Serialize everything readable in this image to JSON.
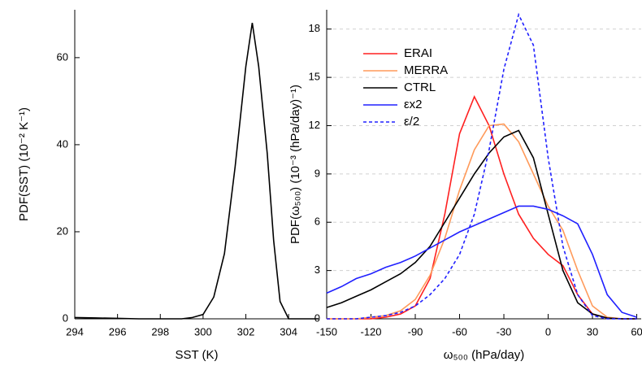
{
  "chart_data": [
    {
      "type": "line",
      "x_label": "SST (K)",
      "y_label": "PDF(SST) (10⁻² K⁻¹)",
      "x": [
        294,
        295,
        296,
        297,
        298,
        299,
        299.5,
        300,
        300.5,
        301,
        301.5,
        302,
        302.3,
        302.6,
        303,
        303.3,
        303.6,
        304,
        305,
        305.4
      ],
      "series": [
        {
          "name": null,
          "color": "#000000",
          "values": [
            0.3,
            0.2,
            0.1,
            0,
            0,
            0,
            0.3,
            1,
            5,
            15,
            35,
            58,
            68,
            58,
            38,
            18,
            4,
            0,
            0,
            0
          ]
        }
      ],
      "xlim": [
        294,
        305.4
      ],
      "xticks": [
        294,
        296,
        298,
        300,
        302,
        304
      ],
      "ylim": [
        0,
        71
      ],
      "yticks": [
        0,
        20,
        40,
        60
      ],
      "grid": false
    },
    {
      "type": "line",
      "x_label": "ω₅₀₀ (hPa/day)",
      "y_label": "PDF(ω₅₀₀) (10⁻³ (hPa/day)⁻¹)",
      "x": [
        -150,
        -140,
        -130,
        -120,
        -110,
        -100,
        -90,
        -80,
        -70,
        -60,
        -50,
        -40,
        -30,
        -20,
        -10,
        0,
        10,
        20,
        30,
        40,
        50,
        60
      ],
      "series": [
        {
          "name": "ERAI",
          "color": "#ff2020",
          "linestyle": "solid",
          "values": [
            0,
            0,
            0,
            0,
            0.1,
            0.3,
            0.8,
            2.5,
            6.5,
            11.5,
            13.8,
            12,
            9,
            6.5,
            5,
            4,
            3.3,
            1.5,
            0.3,
            0.05,
            0,
            0
          ]
        },
        {
          "name": "MERRA",
          "color": "#ff9a5a",
          "linestyle": "solid",
          "values": [
            0,
            0,
            0,
            0.1,
            0.2,
            0.5,
            1.2,
            2.7,
            5,
            8,
            10.5,
            12,
            12.1,
            11,
            9,
            7,
            5.5,
            3,
            0.8,
            0.1,
            0,
            0
          ]
        },
        {
          "name": "CTRL",
          "color": "#000000",
          "linestyle": "solid",
          "values": [
            0.7,
            1,
            1.4,
            1.8,
            2.3,
            2.8,
            3.5,
            4.5,
            6,
            7.5,
            9,
            10.3,
            11.3,
            11.7,
            10,
            6.5,
            3,
            1,
            0.3,
            0.05,
            0,
            0
          ]
        },
        {
          "name": "εx2",
          "color": "#2020ff",
          "linestyle": "solid",
          "values": [
            1.6,
            2,
            2.5,
            2.8,
            3.2,
            3.5,
            3.9,
            4.4,
            4.9,
            5.4,
            5.8,
            6.2,
            6.6,
            7,
            7,
            6.8,
            6.4,
            5.9,
            4,
            1.5,
            0.4,
            0.1
          ]
        },
        {
          "name": "ε/2",
          "color": "#2020ff",
          "linestyle": "dashed",
          "values": [
            0,
            0,
            0,
            0.1,
            0.2,
            0.4,
            0.8,
            1.5,
            2.5,
            4,
            6.5,
            10.5,
            15.5,
            18.9,
            17,
            10,
            4.5,
            1.5,
            0.2,
            0,
            0,
            0
          ]
        }
      ],
      "xlim": [
        -150,
        63
      ],
      "xticks": [
        -150,
        -120,
        -90,
        -60,
        -30,
        0,
        30,
        60
      ],
      "ylim": [
        0,
        19.2
      ],
      "yticks": [
        0,
        3,
        6,
        9,
        12,
        15,
        18
      ],
      "grid": true
    }
  ]
}
